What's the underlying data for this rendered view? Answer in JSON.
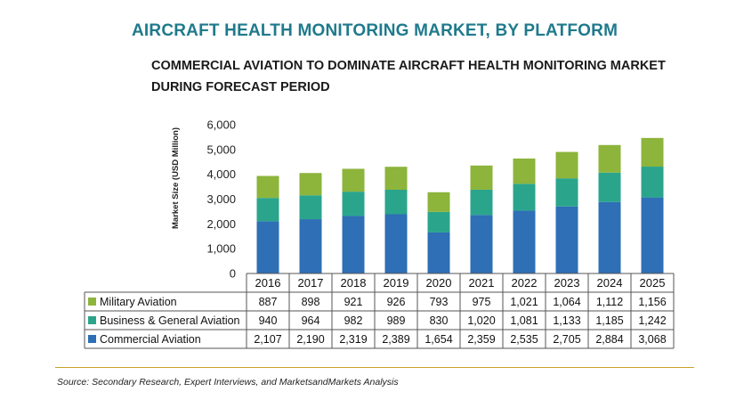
{
  "header": {
    "title": "AIRCRAFT HEALTH MONITORING MARKET, BY PLATFORM",
    "subtitle_line1": "COMMERCIAL AVIATION TO DOMINATE AIRCRAFT HEALTH MONITORING MARKET",
    "subtitle_line2": "DURING FORECAST PERIOD"
  },
  "chart_data": {
    "type": "bar",
    "stacked": true,
    "ylabel": "Market Size (USD Million)",
    "ylim": [
      0,
      6000
    ],
    "yticks": [
      0,
      1000,
      2000,
      3000,
      4000,
      5000,
      6000
    ],
    "ytick_labels": [
      "0",
      "1,000",
      "2,000",
      "3,000",
      "4,000",
      "5,000",
      "6,000"
    ],
    "categories": [
      "2016",
      "2017",
      "2018",
      "2019",
      "2020",
      "2021",
      "2022",
      "2023",
      "2024",
      "2025"
    ],
    "series": [
      {
        "name": "Commercial Aviation",
        "color": "#2e6fb5",
        "values": [
          2107,
          2190,
          2319,
          2389,
          1654,
          2359,
          2535,
          2705,
          2884,
          3068
        ],
        "labels": [
          "2,107",
          "2,190",
          "2,319",
          "2,389",
          "1,654",
          "2,359",
          "2,535",
          "2,705",
          "2,884",
          "3,068"
        ]
      },
      {
        "name": "Business & General Aviation",
        "color": "#2aa58c",
        "values": [
          940,
          964,
          982,
          989,
          830,
          1020,
          1081,
          1133,
          1185,
          1242
        ],
        "labels": [
          "940",
          "964",
          "982",
          "989",
          "830",
          "1,020",
          "1,081",
          "1,133",
          "1,185",
          "1,242"
        ]
      },
      {
        "name": "Military Aviation",
        "color": "#8db43b",
        "values": [
          887,
          898,
          921,
          926,
          793,
          975,
          1021,
          1064,
          1112,
          1156
        ],
        "labels": [
          "887",
          "898",
          "921",
          "926",
          "793",
          "975",
          "1,021",
          "1,064",
          "1,112",
          "1,156"
        ]
      }
    ],
    "legend": "data-table-rows",
    "grid": false
  },
  "footer": {
    "source": "Source: Secondary Research, Expert Interviews, and MarketsandMarkets Analysis"
  }
}
